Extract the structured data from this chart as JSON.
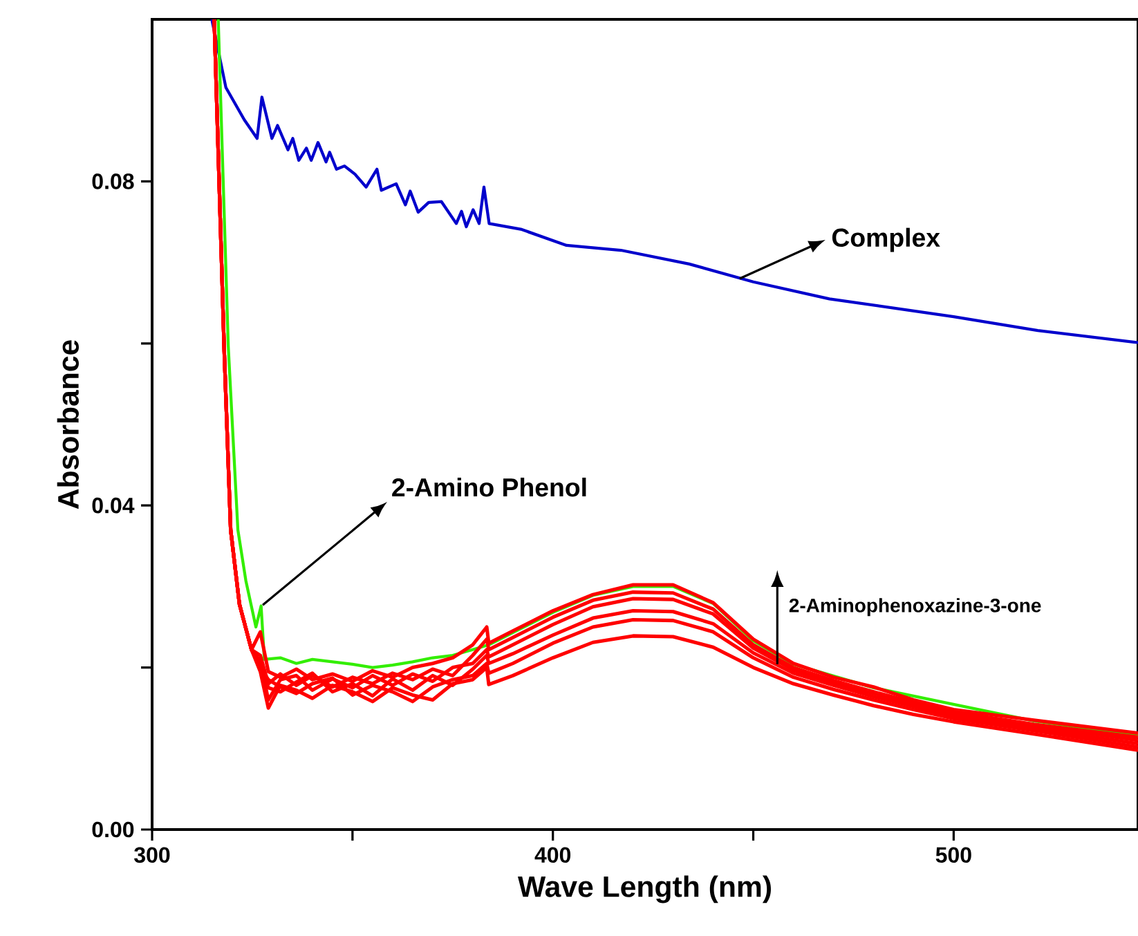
{
  "chart_data": {
    "type": "line",
    "xlabel": "Wave Length (nm)",
    "ylabel": "Absorbance",
    "xlim": [
      300,
      546
    ],
    "ylim": [
      0,
      0.1
    ],
    "xticks": [
      300,
      {
        "value": 350,
        "label": null
      },
      400,
      {
        "value": 450,
        "label": null
      },
      500
    ],
    "yticks": [
      {
        "value": 0,
        "label": "0.00"
      },
      {
        "value": 0.02,
        "label": null
      },
      {
        "value": 0.04,
        "label": "0.04"
      },
      {
        "value": 0.06,
        "label": null
      },
      {
        "value": 0.08,
        "label": "0.08"
      }
    ],
    "x": [
      315.5,
      318,
      319.6,
      321.8,
      324.8,
      327,
      329,
      332,
      336,
      340,
      345,
      350,
      355,
      360,
      365,
      370,
      375,
      380,
      383.5,
      384,
      390,
      400,
      410,
      420,
      430,
      440,
      450,
      460,
      470,
      480,
      490,
      500,
      520,
      546
    ],
    "series": [
      {
        "color": "#0000cc",
        "x": [
          314.9,
          318.4,
          323.0,
          326.2,
          327.4,
          329.9,
          331.3,
          333.9,
          335.1,
          336.6,
          338.5,
          339.7,
          341.4,
          343.4,
          344.3,
          346.0,
          348.0,
          350.6,
          353.4,
          356.1,
          357.2,
          360.9,
          363.2,
          364.4,
          366.4,
          369.0,
          372.2,
          375.9,
          377.2,
          378.4,
          380.1,
          381.6,
          382.8,
          384.1,
          392.0,
          403.4,
          417,
          434,
          450,
          469,
          500,
          521,
          546
        ],
        "values": [
          0.1,
          0.0916,
          0.0876,
          0.0853,
          0.0904,
          0.0853,
          0.0869,
          0.0839,
          0.0853,
          0.0826,
          0.0841,
          0.0826,
          0.0848,
          0.0824,
          0.0836,
          0.0815,
          0.0819,
          0.0809,
          0.0793,
          0.0815,
          0.0789,
          0.0797,
          0.0771,
          0.0788,
          0.0762,
          0.0774,
          0.0775,
          0.0748,
          0.0763,
          0.0744,
          0.0765,
          0.0748,
          0.0793,
          0.0748,
          0.0741,
          0.0721,
          0.0715,
          0.0698,
          0.0676,
          0.0655,
          0.0633,
          0.0616,
          0.0601
        ]
      },
      {
        "color": "#33ee00",
        "x": [
          316.5,
          319,
          321.4,
          323.4,
          325.9,
          327.2,
          328,
          332,
          336,
          340,
          345,
          350,
          355,
          360,
          365,
          370,
          375,
          380,
          384,
          390,
          400,
          410,
          420,
          430,
          440,
          450,
          460,
          470,
          480,
          490,
          500,
          520,
          546
        ],
        "values": [
          0.1,
          0.0597,
          0.037,
          0.0307,
          0.025,
          0.0276,
          0.021,
          0.0212,
          0.0205,
          0.021,
          0.0207,
          0.0204,
          0.02,
          0.0203,
          0.0207,
          0.0212,
          0.0215,
          0.0222,
          0.0228,
          0.0243,
          0.0268,
          0.0289,
          0.03,
          0.03,
          0.0279,
          0.0233,
          0.0204,
          null,
          0.0175,
          null,
          null,
          0.0134,
          0.0117
        ]
      },
      {
        "color": "#ff0000",
        "values": [
          0.1,
          0.059,
          0.037,
          0.0278,
          0.0222,
          0.0244,
          0.0195,
          0.0188,
          0.0198,
          0.0185,
          0.0192,
          0.0183,
          0.0196,
          0.0188,
          0.02,
          0.0205,
          0.0212,
          0.0228,
          0.025,
          0.023,
          0.0245,
          0.027,
          0.029,
          0.0302,
          0.0302,
          0.028,
          0.0235,
          0.0205,
          0.0188,
          0.0176,
          0.016,
          0.0148,
          0.0135,
          0.0119
        ]
      },
      {
        "color": "#ff0000",
        "values": [
          0.1,
          0.059,
          0.037,
          0.0278,
          0.0222,
          0.0215,
          0.018,
          0.0192,
          0.0178,
          0.019,
          0.0176,
          0.0188,
          0.018,
          0.0193,
          0.0185,
          0.0198,
          0.019,
          0.0215,
          0.0235,
          0.0222,
          0.0237,
          0.0262,
          0.0283,
          0.0293,
          0.0292,
          0.0272,
          0.0228,
          0.02,
          0.0184,
          0.017,
          0.0157,
          0.0145,
          0.013,
          0.0114
        ]
      },
      {
        "color": "#ff0000",
        "values": [
          0.1,
          0.059,
          0.037,
          0.0278,
          0.0222,
          0.0208,
          0.016,
          0.0185,
          0.019,
          0.0172,
          0.0186,
          0.0175,
          0.019,
          0.0178,
          0.0192,
          0.0183,
          0.02,
          0.0205,
          0.0222,
          0.0213,
          0.0228,
          0.0253,
          0.0275,
          0.0285,
          0.0284,
          0.0266,
          0.0224,
          0.0197,
          0.0181,
          0.0168,
          0.0155,
          0.0143,
          0.0128,
          0.011
        ]
      },
      {
        "color": "#ff0000",
        "values": [
          0.1,
          0.059,
          0.037,
          0.0278,
          0.0222,
          0.0205,
          0.0175,
          0.017,
          0.0182,
          0.0193,
          0.017,
          0.018,
          0.0165,
          0.0186,
          0.0172,
          0.019,
          0.0178,
          0.0198,
          0.0215,
          0.0205,
          0.0217,
          0.024,
          0.0261,
          0.027,
          0.0269,
          0.0254,
          0.0218,
          0.0193,
          0.0178,
          0.0164,
          0.0152,
          0.014,
          0.0125,
          0.0106
        ]
      },
      {
        "color": "#ff0000",
        "values": [
          0.1,
          0.059,
          0.037,
          0.0278,
          0.0222,
          0.02,
          0.0185,
          0.0176,
          0.0168,
          0.018,
          0.0187,
          0.0166,
          0.0178,
          0.017,
          0.0158,
          0.0176,
          0.0185,
          0.019,
          0.0205,
          0.0193,
          0.0205,
          0.023,
          0.025,
          0.0259,
          0.0258,
          0.0244,
          0.0212,
          0.0188,
          0.0173,
          0.016,
          0.0148,
          0.0137,
          0.0122,
          0.0102
        ]
      },
      {
        "color": "#ff0000",
        "values": [
          0.1,
          0.059,
          0.037,
          0.0278,
          0.0222,
          0.0195,
          0.015,
          0.0178,
          0.0172,
          0.0162,
          0.0178,
          0.017,
          0.0158,
          0.0175,
          0.0166,
          0.016,
          0.018,
          0.0185,
          0.02,
          0.0179,
          0.019,
          0.0212,
          0.0231,
          0.0239,
          0.0238,
          0.0225,
          0.02,
          0.018,
          0.0166,
          0.0153,
          0.0142,
          0.0133,
          0.0118,
          0.0098
        ]
      }
    ],
    "annotations": [
      {
        "text": "Complex",
        "x": 446.6,
        "y": 0.068
      },
      {
        "text": "2-Amino Phenol",
        "x": 327.6,
        "y": 0.0277
      },
      {
        "text": "2-Aminophenoxazine-3-one",
        "x": 456,
        "y": 0.0204
      }
    ]
  }
}
